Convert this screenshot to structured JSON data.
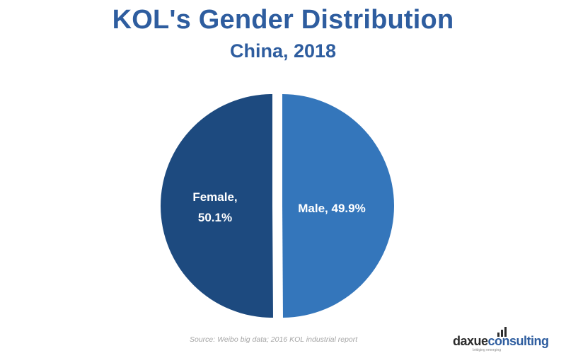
{
  "title": "KOL's Gender Distribution",
  "subtitle": "China, 2018",
  "source": "Source: Weibo big data; 2016 KOL industrial report",
  "logo": {
    "part1": "daxue",
    "part2": "consulting",
    "tagline": "bridging emerging"
  },
  "colors": {
    "female": "#1d4a7f",
    "male": "#3476bb",
    "title": "#2e5d9f"
  },
  "chart_data": {
    "type": "pie",
    "title": "KOL's Gender Distribution",
    "subtitle": "China, 2018",
    "slices": [
      {
        "label": "Female",
        "value": 50.1,
        "text_line1": "Female,",
        "text_line2": "50.1%",
        "color": "#1d4a7f"
      },
      {
        "label": "Male",
        "value": 49.9,
        "text_line1": "Male, 49.9%",
        "text_line2": "",
        "color": "#3476bb"
      }
    ]
  }
}
